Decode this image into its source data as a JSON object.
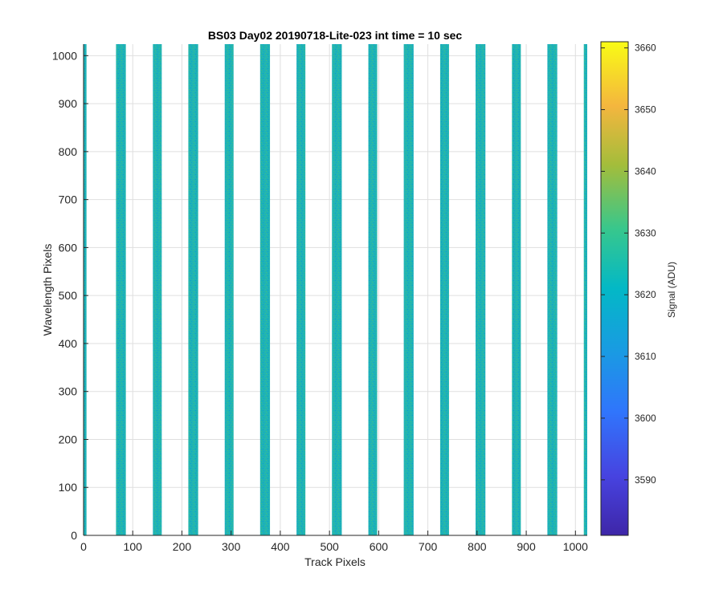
{
  "chart_data": {
    "type": "heatmap",
    "title": "BS03 Day02 20190718-Lite-023 int time = 10 sec",
    "xlabel": "Track Pixels",
    "ylabel": "Wavelength Pixels",
    "xlim": [
      0,
      1024
    ],
    "ylim": [
      0,
      1024
    ],
    "xticks": [
      0,
      100,
      200,
      300,
      400,
      500,
      600,
      700,
      800,
      900,
      1000
    ],
    "yticks": [
      0,
      100,
      200,
      300,
      400,
      500,
      600,
      700,
      800,
      900,
      1000
    ],
    "grid": true,
    "colormap": "parula",
    "bands": [
      {
        "x0": 0,
        "x1": 6
      },
      {
        "x0": 66,
        "x1": 86
      },
      {
        "x0": 141,
        "x1": 159
      },
      {
        "x0": 213,
        "x1": 233
      },
      {
        "x0": 287,
        "x1": 305
      },
      {
        "x0": 359,
        "x1": 379
      },
      {
        "x0": 433,
        "x1": 451
      },
      {
        "x0": 505,
        "x1": 525
      },
      {
        "x0": 579,
        "x1": 597
      },
      {
        "x0": 651,
        "x1": 671
      },
      {
        "x0": 725,
        "x1": 743
      },
      {
        "x0": 797,
        "x1": 817
      },
      {
        "x0": 871,
        "x1": 889
      },
      {
        "x0": 943,
        "x1": 963
      },
      {
        "x0": 1017,
        "x1": 1024
      }
    ],
    "band_signal_mean": 3619,
    "background_signal": "white (saturated/low)",
    "colorbar": {
      "label": "Signal (ADU)",
      "range": [
        3581,
        3661
      ],
      "ticks": [
        3590,
        3600,
        3610,
        3620,
        3630,
        3640,
        3650,
        3660
      ]
    }
  }
}
